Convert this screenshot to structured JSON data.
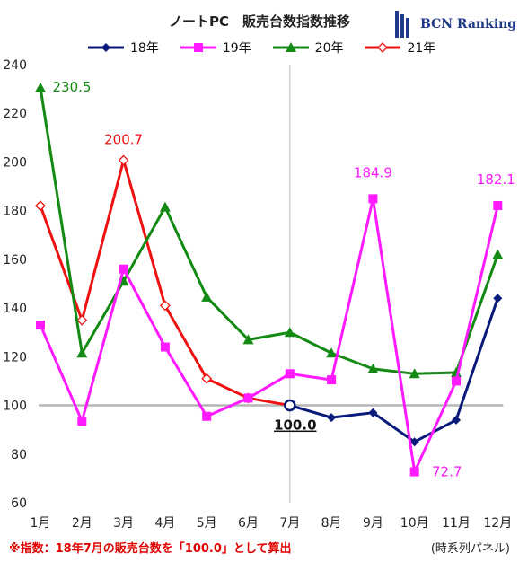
{
  "colors": {
    "s18": "#0a1a7a",
    "s19": "#ff1aff",
    "s20": "#138a13",
    "s21": "#ee1111",
    "baseline": "#b5b5b5",
    "divider": "#bbbbbb",
    "footnote": "#e00000"
  },
  "chart_data": {
    "type": "line",
    "title": "ノートPC　販売台数指数推移",
    "categories": [
      "1月",
      "2月",
      "3月",
      "4月",
      "5月",
      "6月",
      "7月",
      "8月",
      "9月",
      "10月",
      "11月",
      "12月"
    ],
    "ylim": [
      60,
      240
    ],
    "yticks": [
      "60",
      "80",
      "100",
      "120",
      "140",
      "160",
      "180",
      "200",
      "220",
      "240"
    ],
    "baseline": 100,
    "legend_position": "top",
    "series": [
      {
        "name": "18年",
        "marker": "diamond",
        "values": [
          null,
          null,
          null,
          null,
          null,
          null,
          100.0,
          95,
          97,
          85,
          94,
          144
        ]
      },
      {
        "name": "19年",
        "marker": "square",
        "values": [
          133,
          93.5,
          156,
          124,
          95.5,
          103,
          113,
          110.5,
          184.9,
          72.7,
          110,
          182.1
        ]
      },
      {
        "name": "20年",
        "marker": "triangle",
        "values": [
          230.5,
          121.5,
          151,
          181.5,
          144.5,
          127,
          130,
          121.5,
          115,
          113,
          113.5,
          162
        ]
      },
      {
        "name": "21年",
        "marker": "open-diamond",
        "values": [
          182,
          135,
          200.7,
          141,
          111,
          103,
          100,
          null,
          null,
          null,
          null,
          null
        ]
      }
    ],
    "annotations": [
      {
        "text": "230.5",
        "series": "20年",
        "month": "1月"
      },
      {
        "text": "200.7",
        "series": "21年",
        "month": "3月"
      },
      {
        "text": "184.9",
        "series": "19年",
        "month": "9月"
      },
      {
        "text": "72.7",
        "series": "19年",
        "month": "10月"
      },
      {
        "text": "182.1",
        "series": "19年",
        "month": "12月"
      },
      {
        "text": "100.0",
        "series": "18年",
        "month": "7月"
      }
    ]
  },
  "brand": {
    "name": "BCN Ranking"
  },
  "footnote": "※指数：18年7月の販売台数を「100.0」として算出",
  "source": "(時系列パネル)"
}
